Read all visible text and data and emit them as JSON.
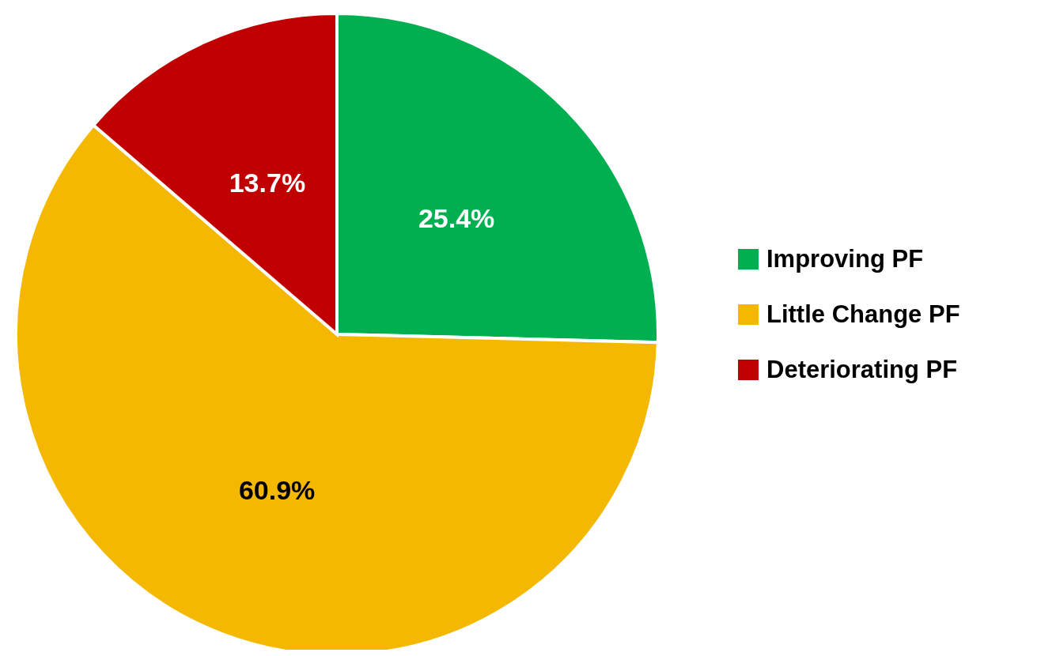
{
  "chart_data": {
    "type": "pie",
    "categories": [
      "Improving PF",
      "Little Change PF",
      "Deteriorating PF"
    ],
    "values": [
      25.4,
      60.9,
      13.7
    ],
    "colors": [
      "#00b050",
      "#f5b800",
      "#c00000"
    ],
    "value_labels": [
      "25.4%",
      "60.9%",
      "13.7%"
    ],
    "legend": "right"
  }
}
